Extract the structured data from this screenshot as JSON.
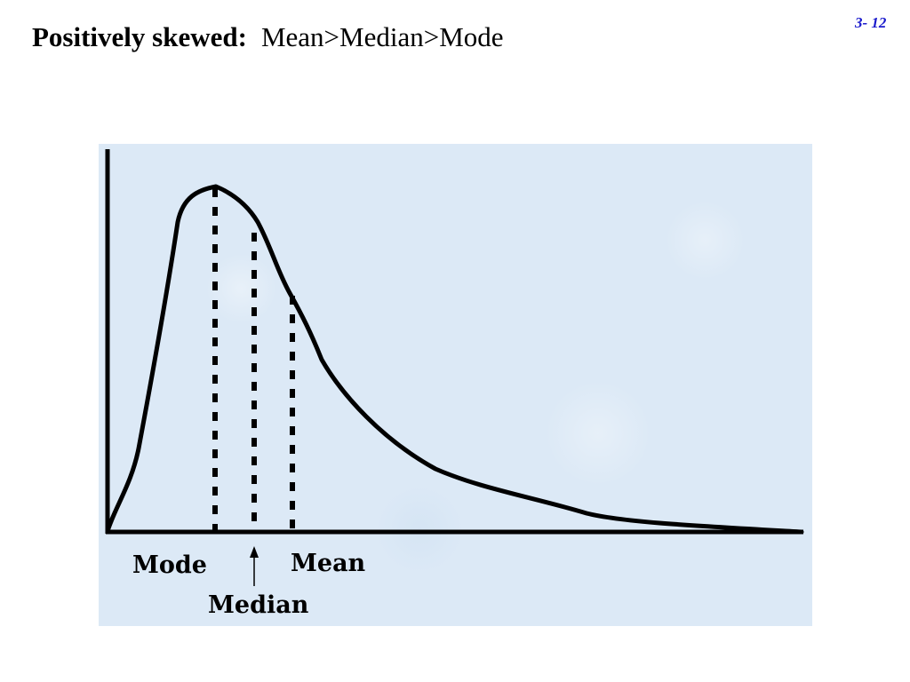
{
  "slide": {
    "title_bold": "Positively skewed:",
    "title_relation": "Mean>Median>Mode",
    "page_number": "3- 12"
  },
  "diagram": {
    "labels": {
      "mode": "Mode",
      "median": "Median",
      "mean": "Mean"
    },
    "colors": {
      "panel_background": "#dce9f6",
      "curve": "#000000",
      "page_number": "#1a1acc"
    }
  }
}
